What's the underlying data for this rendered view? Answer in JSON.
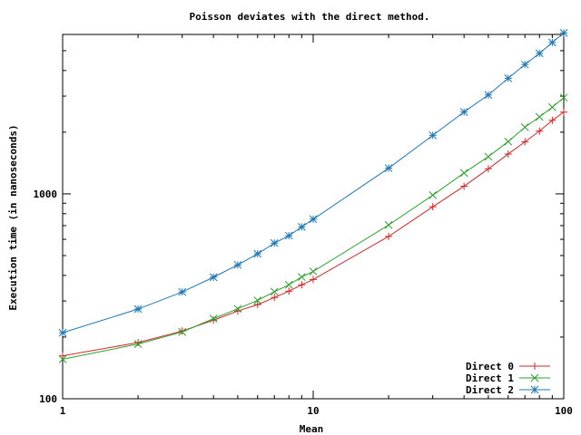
{
  "chart_data": {
    "type": "line",
    "title": "Poisson deviates with the direct method.",
    "xlabel": "Mean",
    "ylabel": "Execution time (in nanoseconds)",
    "xscale": "log",
    "yscale": "log",
    "xlim": [
      1,
      100
    ],
    "ylim": [
      100,
      6000
    ],
    "xticks": [
      1,
      10,
      100
    ],
    "xtick_labels": [
      "1",
      "10",
      "100"
    ],
    "yticks": [
      100,
      1000
    ],
    "ytick_labels": [
      "100",
      "1000"
    ],
    "grid": false,
    "legend_position": "bottom-right",
    "x": [
      1,
      2,
      3,
      4,
      5,
      6,
      7,
      8,
      9,
      10,
      20,
      30,
      40,
      50,
      60,
      70,
      80,
      90,
      100
    ],
    "series": [
      {
        "name": "Direct 0",
        "color": "#d62728",
        "marker": "plus",
        "values": [
          162,
          188,
          214,
          242,
          268,
          288,
          312,
          335,
          360,
          382,
          620,
          865,
          1090,
          1325,
          1565,
          1795,
          2025,
          2285,
          2505
        ]
      },
      {
        "name": "Direct 1",
        "color": "#2ca02c",
        "marker": "x",
        "values": [
          156,
          185,
          212,
          246,
          275,
          302,
          333,
          360,
          393,
          418,
          705,
          985,
          1265,
          1520,
          1800,
          2115,
          2375,
          2650,
          2950
        ]
      },
      {
        "name": "Direct 2",
        "color": "#1f77b4",
        "marker": "star",
        "values": [
          210,
          274,
          332,
          392,
          450,
          510,
          575,
          625,
          690,
          752,
          1335,
          1930,
          2510,
          3040,
          3665,
          4280,
          4850,
          5480,
          6100
        ]
      }
    ]
  }
}
